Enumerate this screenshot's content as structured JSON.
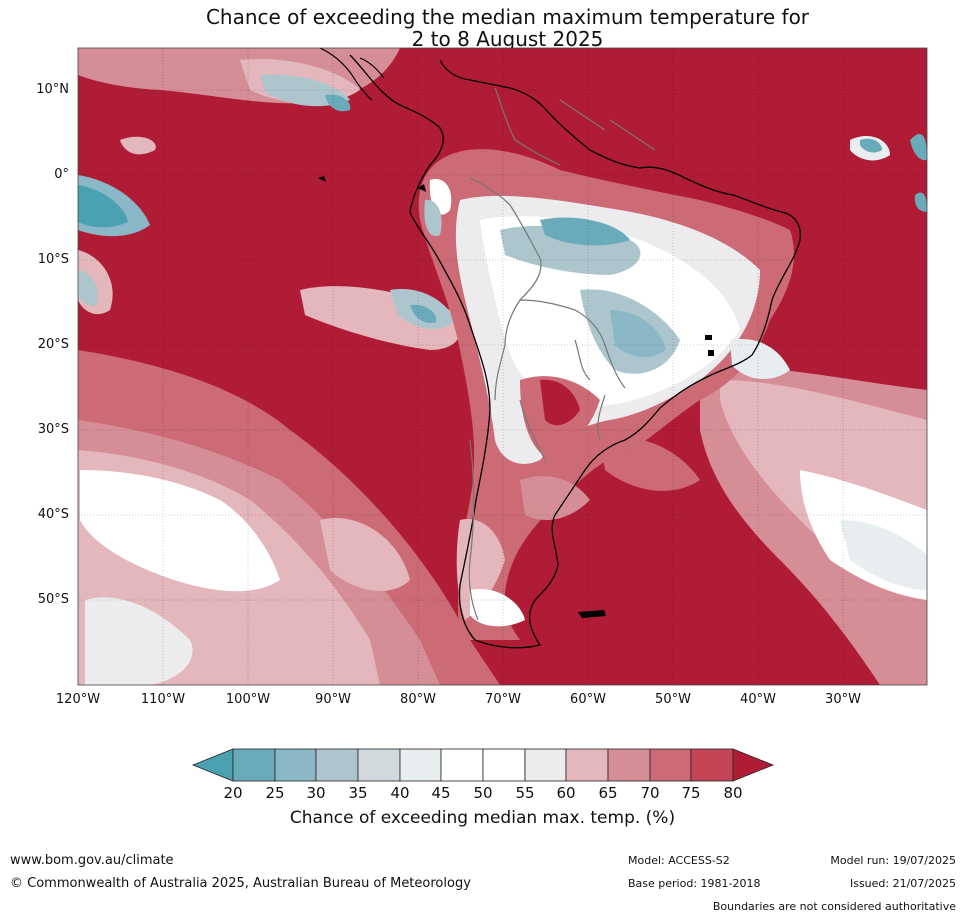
{
  "title": {
    "line1": "Chance of exceeding the median maximum temperature for",
    "line2": "2 to 8 August 2025"
  },
  "map": {
    "lat_labels": [
      "10°N",
      "0°",
      "10°S",
      "20°S",
      "30°S",
      "40°S",
      "50°S"
    ],
    "lon_labels": [
      "120°W",
      "110°W",
      "100°W",
      "90°W",
      "80°W",
      "70°W",
      "60°W",
      "50°W",
      "40°W",
      "30°W"
    ],
    "colors": {
      "above80": "#b01c36",
      "c75_80": "#c44656",
      "c70_75": "#cc6a76",
      "c65_70": "#d68e96",
      "c60_65": "#e3b7bc",
      "c55_60": "#ececee",
      "c45_55": "#ffffff",
      "c40_45": "#e8eef0",
      "c35_40": "#d2d9dc",
      "c30_35": "#adc6ce",
      "c25_30": "#8ab8c6",
      "c20_25": "#6aabbb",
      "below20": "#4ba0b2"
    }
  },
  "colorbar": {
    "ticks": [
      "20",
      "25",
      "30",
      "35",
      "40",
      "45",
      "50",
      "55",
      "60",
      "65",
      "70",
      "75",
      "80"
    ],
    "caption": "Chance of exceeding median max. temp. (%)"
  },
  "footer": {
    "website": "www.bom.gov.au/climate",
    "copyright": "© Commonwealth of Australia 2025, Australian Bureau of Meteorology",
    "model": "Model: ACCESS-S2",
    "base_period": "Base period: 1981-2018",
    "model_run": "Model run: 19/07/2025",
    "issued": "Issued: 21/07/2025",
    "disclaimer": "Boundaries are not considered authoritative"
  }
}
